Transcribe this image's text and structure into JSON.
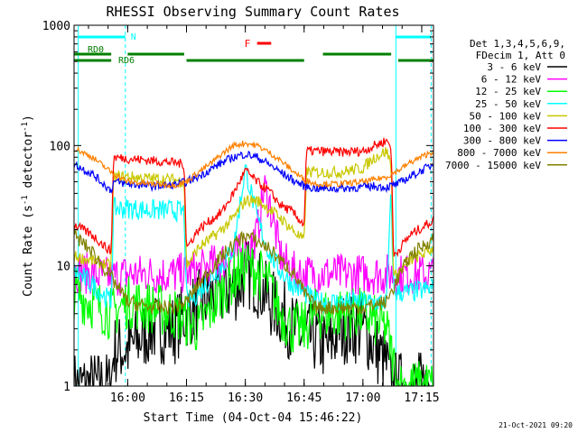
{
  "chart_data": {
    "type": "line",
    "title": "RHESSI Observing Summary Count Rates",
    "xlabel": "Start Time (04-Oct-04 15:46:22)",
    "ylabel": "Count Rate (s-1 detector-1)",
    "ylabel_parts": {
      "main": "Count Rate (s",
      "exp1": "-1",
      "mid": " detector",
      "exp2": "-1",
      "end": ")"
    },
    "yscale": "log",
    "xlim": [
      15.772,
      17.3
    ],
    "ylim": [
      1,
      1000
    ],
    "y_ticks": [
      {
        "value": 1,
        "label": "1"
      },
      {
        "value": 10,
        "label": "10"
      },
      {
        "value": 100,
        "label": "100"
      },
      {
        "value": 1000,
        "label": "1000"
      }
    ],
    "x_ticks": [
      {
        "value": 16.0,
        "label": "16:00"
      },
      {
        "value": 16.25,
        "label": "16:15"
      },
      {
        "value": 16.5,
        "label": "16:30"
      },
      {
        "value": 16.75,
        "label": "16:45"
      },
      {
        "value": 17.0,
        "label": "17:00"
      },
      {
        "value": 17.25,
        "label": "17:15"
      }
    ],
    "legend": {
      "placement": "right",
      "header": [
        "Det 1,3,4,5,6,9,",
        "FDecim 1, Att 0"
      ],
      "entries": [
        {
          "label": "3 - 6 keV",
          "color": "#000000"
        },
        {
          "label": "6 - 12 keV",
          "color": "#ff00ff"
        },
        {
          "label": "12 - 25 keV",
          "color": "#00ff00"
        },
        {
          "label": "25 - 50 keV",
          "color": "#00ffff"
        },
        {
          "label": "50 - 100 keV",
          "color": "#c8c800"
        },
        {
          "label": "100 - 300 keV",
          "color": "#ff0000"
        },
        {
          "label": "300 - 800 keV",
          "color": "#0000ff"
        },
        {
          "label": "800 - 7000 keV",
          "color": "#ff8000"
        },
        {
          "label": "7000 - 15000 keV",
          "color": "#808000"
        }
      ]
    },
    "flags": {
      "N": {
        "label": "N",
        "color": "#00ffff",
        "segments": [
          [
            15.79,
            15.99
          ],
          [
            17.14,
            17.29
          ]
        ],
        "edges": [
          15.79,
          15.99,
          17.14,
          17.29
        ]
      },
      "F": {
        "label": "F",
        "color": "#ff0000",
        "segments": [
          [
            16.55,
            16.61
          ]
        ]
      },
      "RD0": {
        "label": "RD0",
        "color": "#008000",
        "segments": [
          [
            15.772,
            15.93
          ],
          [
            16.0,
            16.24
          ],
          [
            16.83,
            17.12
          ]
        ]
      },
      "RD6": {
        "label": "RD6",
        "color": "#008000",
        "segments": [
          [
            15.772,
            15.93
          ],
          [
            16.25,
            16.75
          ],
          [
            17.15,
            17.3
          ]
        ]
      }
    },
    "series": [
      {
        "name": "3 - 6 keV",
        "color": "#000000",
        "x": [
          15.772,
          15.93,
          15.94,
          16.0,
          16.1,
          16.2,
          16.25,
          16.32,
          16.4,
          16.48,
          16.5,
          16.56,
          16.6,
          16.66,
          16.7,
          16.75,
          16.8,
          16.85,
          16.9,
          17.0,
          17.1,
          17.12,
          17.2,
          17.3
        ],
        "values": [
          1,
          1,
          2,
          2,
          3,
          3,
          4,
          5,
          6,
          7,
          9,
          7,
          5,
          4,
          3,
          2.5,
          2.5,
          2,
          3,
          3,
          1.5,
          1,
          1,
          1
        ]
      },
      {
        "name": "6 - 12 keV",
        "color": "#ff00ff",
        "x": [
          15.772,
          15.93,
          16.0,
          16.2,
          16.3,
          16.4,
          16.45,
          16.5,
          16.55,
          16.58,
          16.6,
          16.65,
          16.7,
          16.75,
          16.8,
          17.0,
          17.1,
          17.15,
          17.3
        ],
        "values": [
          9,
          8,
          8.5,
          8.5,
          9,
          11,
          12,
          13,
          18,
          45,
          35,
          12,
          9,
          8.5,
          8.5,
          8.5,
          8.5,
          8.5,
          8.5
        ]
      },
      {
        "name": "12 - 25 keV",
        "color": "#00ff00",
        "x": [
          15.772,
          15.93,
          16.0,
          16.2,
          16.3,
          16.4,
          16.45,
          16.5,
          16.55,
          16.6,
          16.65,
          16.7,
          16.75,
          16.8,
          17.0,
          17.1,
          17.15,
          17.3
        ],
        "values": [
          6,
          4,
          5,
          4,
          3,
          6,
          8,
          10,
          9,
          7,
          4,
          3,
          3,
          4,
          4,
          3,
          1,
          1
        ]
      },
      {
        "name": "25 - 50 keV",
        "color": "#00ffff",
        "x": [
          15.772,
          15.85,
          15.93,
          15.94,
          16.0,
          16.1,
          16.2,
          16.24,
          16.25,
          16.3,
          16.4,
          16.45,
          16.5,
          16.55,
          16.6,
          16.65,
          16.7,
          16.75,
          16.8,
          16.9,
          17.0,
          17.05,
          17.1,
          17.12,
          17.13,
          17.2,
          17.3
        ],
        "values": [
          9,
          7,
          5,
          30,
          30,
          29,
          29,
          28,
          5,
          6,
          10,
          14,
          65,
          25,
          13,
          9,
          7,
          6,
          5,
          5,
          5,
          5,
          5,
          40,
          6,
          6,
          6.5
        ]
      },
      {
        "name": "50 - 100 keV",
        "color": "#c8c800",
        "x": [
          15.772,
          15.85,
          15.93,
          15.94,
          16.0,
          16.1,
          16.2,
          16.24,
          16.25,
          16.3,
          16.4,
          16.45,
          16.5,
          16.55,
          16.6,
          16.65,
          16.7,
          16.75,
          16.76,
          16.8,
          16.9,
          17.0,
          17.05,
          17.1,
          17.12,
          17.13,
          17.2,
          17.3
        ],
        "values": [
          12,
          11,
          10,
          55,
          55,
          53,
          52,
          50,
          10,
          14,
          20,
          25,
          35,
          35,
          30,
          25,
          20,
          16,
          60,
          60,
          60,
          65,
          80,
          90,
          70,
          8,
          11,
          14
        ]
      },
      {
        "name": "100 - 300 keV",
        "color": "#ff0000",
        "x": [
          15.772,
          15.85,
          15.93,
          15.94,
          16.0,
          16.1,
          16.2,
          16.24,
          16.25,
          16.3,
          16.4,
          16.45,
          16.5,
          16.55,
          16.6,
          16.65,
          16.7,
          16.75,
          16.76,
          16.8,
          16.9,
          17.0,
          17.05,
          17.1,
          17.12,
          17.13,
          17.2,
          17.3
        ],
        "values": [
          22,
          18,
          13,
          80,
          78,
          75,
          72,
          70,
          14,
          20,
          28,
          40,
          62,
          50,
          42,
          32,
          28,
          22,
          90,
          90,
          88,
          90,
          100,
          110,
          100,
          12,
          18,
          24
        ]
      },
      {
        "name": "300 - 800 keV",
        "color": "#0000ff",
        "x": [
          15.772,
          15.85,
          15.93,
          15.94,
          16.0,
          16.1,
          16.2,
          16.25,
          16.3,
          16.35,
          16.4,
          16.45,
          16.5,
          16.55,
          16.6,
          16.65,
          16.7,
          16.75,
          16.8,
          16.9,
          17.0,
          17.05,
          17.1,
          17.15,
          17.2,
          17.3
        ],
        "values": [
          70,
          58,
          42,
          50,
          48,
          46,
          47,
          50,
          55,
          63,
          72,
          80,
          85,
          80,
          70,
          60,
          52,
          46,
          44,
          44,
          45,
          46,
          45,
          48,
          55,
          70
        ]
      },
      {
        "name": "800 - 7000 keV",
        "color": "#ff8000",
        "x": [
          15.772,
          15.85,
          15.93,
          16.0,
          16.1,
          16.2,
          16.25,
          16.3,
          16.35,
          16.4,
          16.45,
          16.5,
          16.55,
          16.6,
          16.65,
          16.7,
          16.75,
          16.8,
          16.9,
          17.0,
          17.05,
          17.1,
          17.15,
          17.2,
          17.3
        ],
        "values": [
          95,
          80,
          60,
          50,
          48,
          47,
          50,
          60,
          70,
          85,
          100,
          105,
          100,
          88,
          75,
          62,
          52,
          48,
          48,
          50,
          52,
          55,
          62,
          72,
          90
        ]
      },
      {
        "name": "7000 - 15000 keV",
        "color": "#808000",
        "x": [
          15.772,
          15.85,
          15.93,
          16.0,
          16.1,
          16.2,
          16.25,
          16.3,
          16.4,
          16.45,
          16.5,
          16.55,
          16.6,
          16.65,
          16.7,
          16.75,
          16.8,
          16.9,
          17.0,
          17.1,
          17.15,
          17.2,
          17.3
        ],
        "values": [
          18,
          13,
          8,
          5,
          4.5,
          4.5,
          5,
          7,
          12,
          15,
          18,
          16,
          14,
          11,
          9,
          6,
          4.5,
          4.5,
          4.5,
          5,
          8,
          12,
          17
        ]
      }
    ]
  },
  "footer": {
    "timestamp": "21-Oct-2021 09:20"
  }
}
